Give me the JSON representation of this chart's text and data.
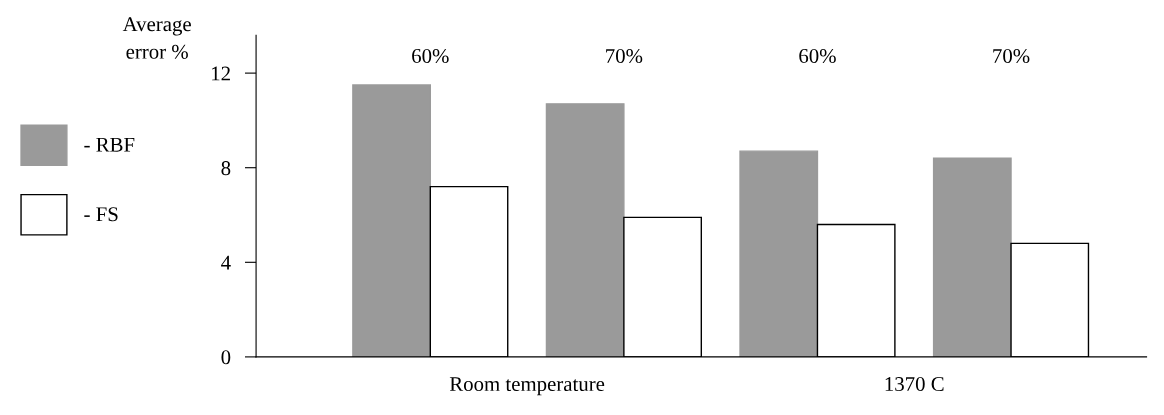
{
  "chart_data": {
    "type": "bar",
    "ylabel": "Average\nerror %",
    "categories": [
      "60%",
      "70%",
      "60%",
      "70%"
    ],
    "series": [
      {
        "name": "- RBF",
        "color": "#9a9a9a",
        "values": [
          11.5,
          10.7,
          8.7,
          8.4
        ]
      },
      {
        "name": "- FS",
        "color": "#ffffff",
        "values": [
          7.2,
          5.9,
          5.6,
          4.8
        ]
      }
    ],
    "ylim": [
      0,
      13.6
    ],
    "yticks": [
      0,
      4,
      8,
      12
    ],
    "annotations": [
      "Room temperature",
      "1370 C"
    ],
    "legend": "left",
    "grid": false
  }
}
